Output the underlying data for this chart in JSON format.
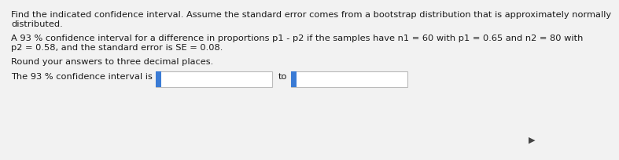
{
  "line1": "Find the indicated confidence interval. Assume the standard error comes from a bootstrap distribution that is approximately normally",
  "line2": "distributed.",
  "line3": "A 93 % confidence interval for a difference in proportions p1 - p2 if the samples have n1 = 60 with p1 = 0.65 and n2 = 80 with",
  "line4": "p2 = 0.58, and the standard error is SE = 0.08.",
  "line5": "Round your answers to three decimal places.",
  "line6_prefix": "The 93 % confidence interval is",
  "to_text": "to",
  "box_color": "#3a7bd5",
  "bg_color": "#f0f0f0",
  "text_color": "#1a1a1a",
  "fontsize_main": 8.2
}
